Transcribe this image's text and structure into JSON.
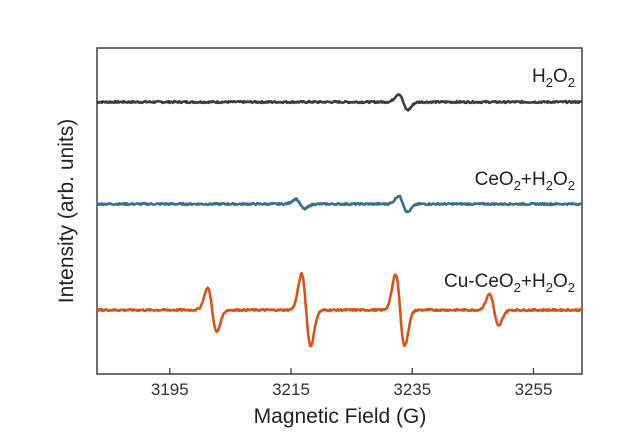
{
  "chart_data": {
    "type": "line",
    "xlabel": "Magnetic Field (G)",
    "ylabel": "Intensity (arb. units)",
    "xlim": [
      3183,
      3263
    ],
    "x_ticks": [
      3195,
      3215,
      3235,
      3255
    ],
    "y_ticks_shown": false,
    "grid": false,
    "legend": "labels placed at right end of each trace",
    "series": [
      {
        "name": "H2O2",
        "label_parts": [
          [
            "H",
            false
          ],
          [
            "2",
            true
          ],
          [
            "O",
            false
          ],
          [
            "2",
            true
          ]
        ],
        "color": "#3d3d3d",
        "baseline": 2.0,
        "peaks": [
          {
            "x": 3233.5,
            "amp": 0.08
          }
        ]
      },
      {
        "name": "CeO2+H2O2",
        "label_parts": [
          [
            "CeO",
            false
          ],
          [
            "2",
            true
          ],
          [
            "+H",
            false
          ],
          [
            "2",
            true
          ],
          [
            "O",
            false
          ],
          [
            "2",
            true
          ]
        ],
        "color": "#3a6f93",
        "baseline": 1.0,
        "peaks": [
          {
            "x": 3216.5,
            "amp": 0.05
          },
          {
            "x": 3233.5,
            "amp": 0.08
          }
        ]
      },
      {
        "name": "Cu-CeO2+H2O2",
        "label_parts": [
          [
            "Cu-CeO",
            false
          ],
          [
            "2",
            true
          ],
          [
            "+H",
            false
          ],
          [
            "2",
            true
          ],
          [
            "O",
            false
          ],
          [
            "2",
            true
          ]
        ],
        "color": "#d95319",
        "baseline": 0.0,
        "peaks": [
          {
            "x": 3202.0,
            "amp": 0.22
          },
          {
            "x": 3217.5,
            "amp": 0.36
          },
          {
            "x": 3233.0,
            "amp": 0.36
          },
          {
            "x": 3248.5,
            "amp": 0.16
          }
        ]
      }
    ]
  }
}
